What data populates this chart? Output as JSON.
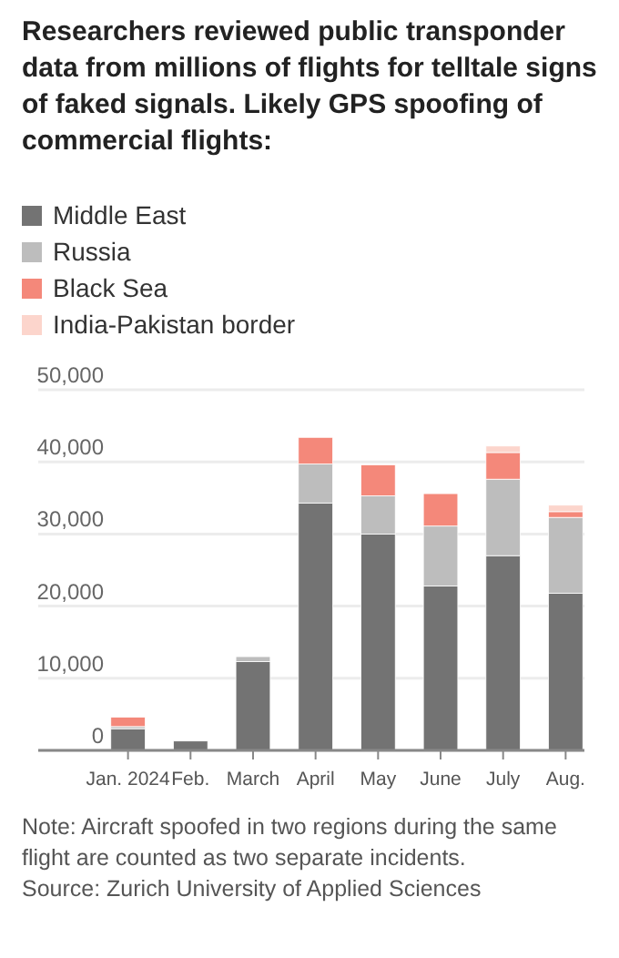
{
  "chart_data": {
    "type": "bar",
    "stacked": true,
    "title": "Researchers reviewed public transponder data from millions of flights for telltale signs of faked signals. Likely GPS spoofing of commercial flights:",
    "categories": [
      "Jan. 2024",
      "Feb.",
      "March",
      "April",
      "May",
      "June",
      "July",
      "Aug."
    ],
    "series": [
      {
        "name": "Middle East",
        "color": "#737373",
        "values": [
          3000,
          1300,
          12300,
          34300,
          30000,
          22800,
          27000,
          21800
        ]
      },
      {
        "name": "Russia",
        "color": "#bdbdbd",
        "values": [
          300,
          0,
          700,
          5400,
          5300,
          8300,
          10600,
          10500
        ]
      },
      {
        "name": "Black Sea",
        "color": "#f4887a",
        "values": [
          1300,
          0,
          0,
          3700,
          4300,
          4500,
          3700,
          800
        ]
      },
      {
        "name": "India-Pakistan border",
        "color": "#fcd5cc",
        "values": [
          0,
          0,
          0,
          0,
          0,
          0,
          900,
          900
        ]
      }
    ],
    "ylim": [
      0,
      50000
    ],
    "yticks": [
      {
        "value": 0,
        "label": "0"
      },
      {
        "value": 10000,
        "label": "10,000"
      },
      {
        "value": 20000,
        "label": "20,000"
      },
      {
        "value": 30000,
        "label": "30,000"
      },
      {
        "value": 40000,
        "label": "40,000"
      },
      {
        "value": 50000,
        "label": "50,000"
      }
    ],
    "grid": "y",
    "legend": "top left",
    "annotations": [
      "Note: Aircraft spoofed in two regions during the same flight are counted as two separate incidents.",
      "Source: Zurich University of Applied Sciences"
    ]
  }
}
